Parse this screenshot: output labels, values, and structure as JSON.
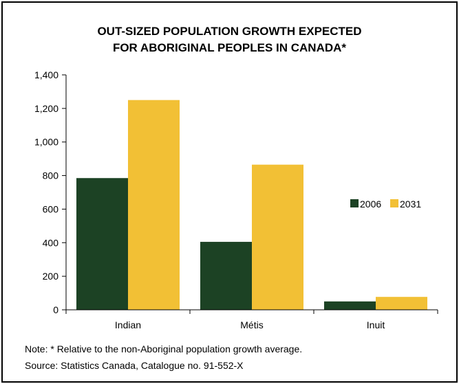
{
  "chart_data": {
    "type": "bar",
    "title_lines": [
      "OUT-SIZED POPULATION GROWTH EXPECTED",
      "FOR ABORIGINAL PEOPLES IN CANADA*"
    ],
    "xlabel": "",
    "ylabel": "",
    "categories": [
      "Indian",
      "Métis",
      "Inuit"
    ],
    "series": [
      {
        "name": "2006",
        "color": "#1c4224",
        "values": [
          785,
          405,
          50
        ]
      },
      {
        "name": "2031",
        "color": "#f2c035",
        "values": [
          1250,
          865,
          77
        ]
      }
    ],
    "ylim": [
      0,
      1400
    ],
    "yticks": [
      0,
      200,
      400,
      600,
      800,
      1000,
      1200,
      1400
    ],
    "ytick_labels": [
      "0",
      "200",
      "400",
      "600",
      "800",
      "1,000",
      "1,200",
      "1,400"
    ],
    "grid": false,
    "legend_position": "right"
  },
  "notes": {
    "note": "Note: * Relative to the non-Aboriginal population growth average.",
    "source": "Source: Statistics Canada, Catalogue no. 91-552-X"
  }
}
